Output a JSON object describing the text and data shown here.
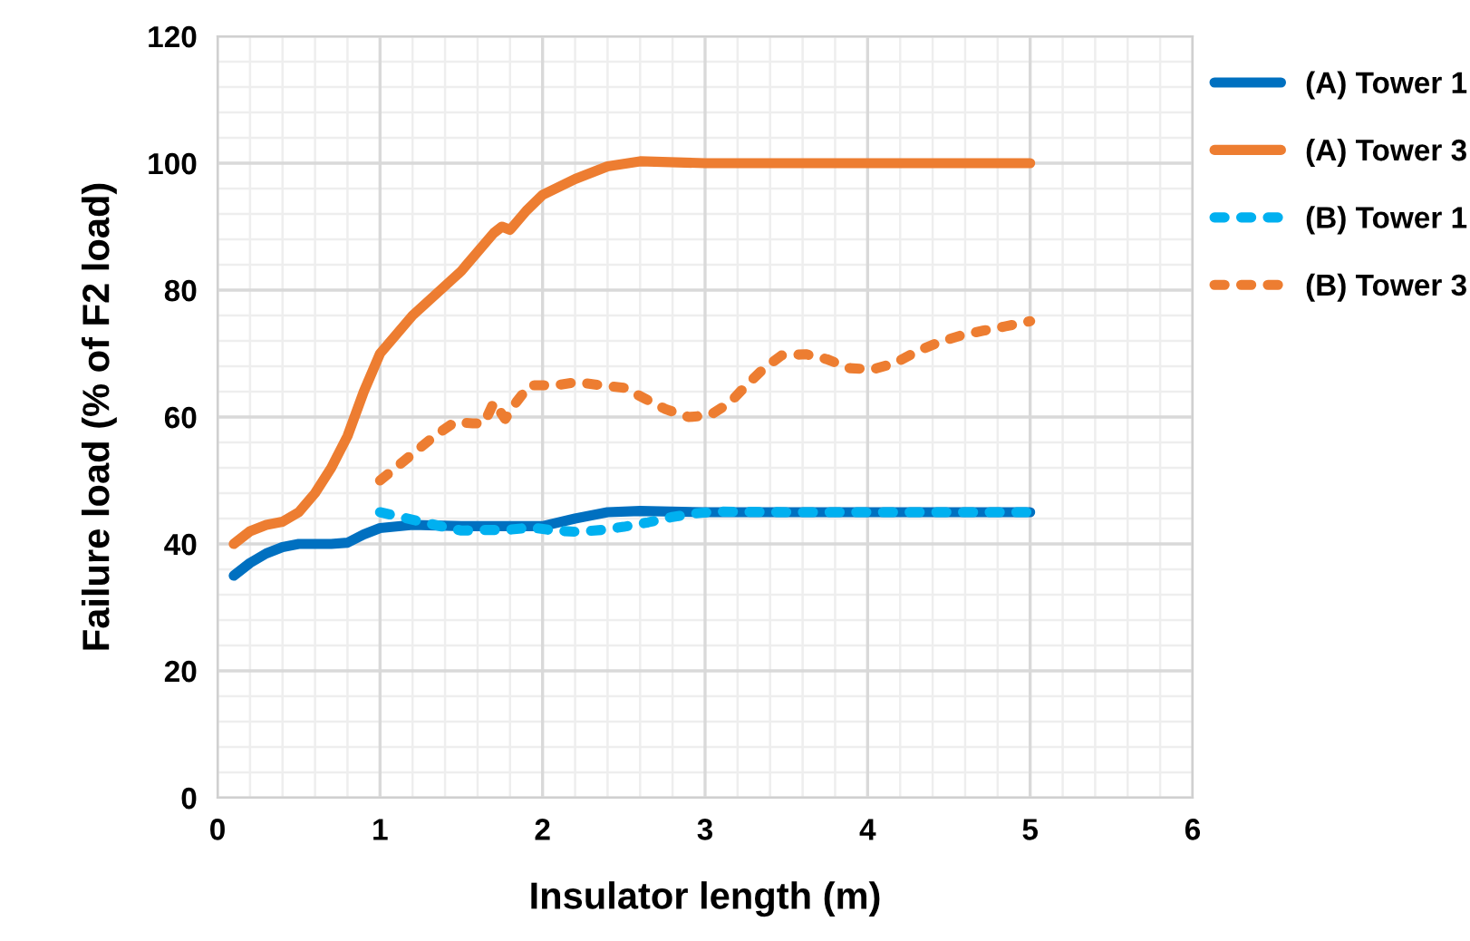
{
  "chart_data": {
    "type": "line",
    "xlabel": "Insulator length (m)",
    "ylabel": "Failure load (% of F2 load)",
    "xlim": [
      0,
      6
    ],
    "xticks": [
      0,
      1,
      2,
      3,
      4,
      5,
      6
    ],
    "ylim": [
      0,
      120
    ],
    "yticks": [
      0,
      20,
      40,
      60,
      80,
      100,
      120
    ],
    "grid": true,
    "legend": "right",
    "marker": "none",
    "series": [
      {
        "name": "(A) Tower 1",
        "color": "#0070c0",
        "line_style": "solid",
        "x": [
          0.1,
          0.2,
          0.3,
          0.4,
          0.5,
          0.6,
          0.7,
          0.8,
          0.9,
          1.0,
          1.2,
          1.5,
          2.0,
          2.2,
          2.4,
          2.6,
          3.0,
          4.0,
          5.0
        ],
        "values": [
          35,
          37,
          38.5,
          39.5,
          40,
          40,
          40,
          40.2,
          41.5,
          42.5,
          43,
          42.8,
          42.8,
          44,
          45,
          45.2,
          45,
          45,
          45
        ]
      },
      {
        "name": "(A) Tower 3",
        "color": "#ed7d31",
        "line_style": "solid",
        "x": [
          0.1,
          0.2,
          0.3,
          0.4,
          0.5,
          0.6,
          0.7,
          0.8,
          0.9,
          1.0,
          1.2,
          1.5,
          1.7,
          1.75,
          1.8,
          1.9,
          2.0,
          2.2,
          2.4,
          2.6,
          3.0,
          4.0,
          5.0
        ],
        "values": [
          40,
          42,
          43,
          43.5,
          45,
          48,
          52,
          57,
          64,
          70,
          76,
          83,
          89,
          90,
          89.5,
          92.5,
          95,
          97.5,
          99.5,
          100.3,
          100,
          100,
          100
        ]
      },
      {
        "name": "(B) Tower 1",
        "color": "#00b0f0",
        "line_style": "dotted",
        "x": [
          1.0,
          1.12,
          1.25,
          1.39,
          1.5,
          1.64,
          1.78,
          1.93,
          2.07,
          2.22,
          2.36,
          2.5,
          2.65,
          2.79,
          2.94,
          3.07,
          3.5,
          4.0,
          4.5,
          5.0
        ],
        "values": [
          45,
          44.3,
          43.5,
          42.7,
          42.1,
          42.2,
          42.2,
          42.6,
          42.1,
          41.9,
          42.2,
          42.7,
          43.4,
          44.2,
          44.8,
          45.1,
          45,
          45,
          45,
          45
        ]
      },
      {
        "name": "(B) Tower 3",
        "color": "#ed7d31",
        "line_style": "dotted",
        "x": [
          1.0,
          1.11,
          1.22,
          1.33,
          1.46,
          1.57,
          1.64,
          1.7,
          1.77,
          1.84,
          1.92,
          2.08,
          2.21,
          2.36,
          2.5,
          2.63,
          2.76,
          2.9,
          3.03,
          3.15,
          3.25,
          3.36,
          3.47,
          3.62,
          3.75,
          3.89,
          4.03,
          4.17,
          4.3,
          4.43,
          4.58,
          4.71,
          4.85,
          5.0
        ],
        "values": [
          50,
          52.3,
          54.6,
          56.9,
          59.2,
          59,
          59,
          62.3,
          59.7,
          62.4,
          65,
          65,
          65.5,
          65,
          64.6,
          62.9,
          61.2,
          60,
          60.3,
          62.2,
          64.9,
          67.6,
          69.7,
          69.9,
          69.1,
          67.7,
          67.5,
          68.5,
          70.3,
          71.7,
          72.9,
          73.6,
          74.3,
          75.1
        ]
      }
    ]
  }
}
